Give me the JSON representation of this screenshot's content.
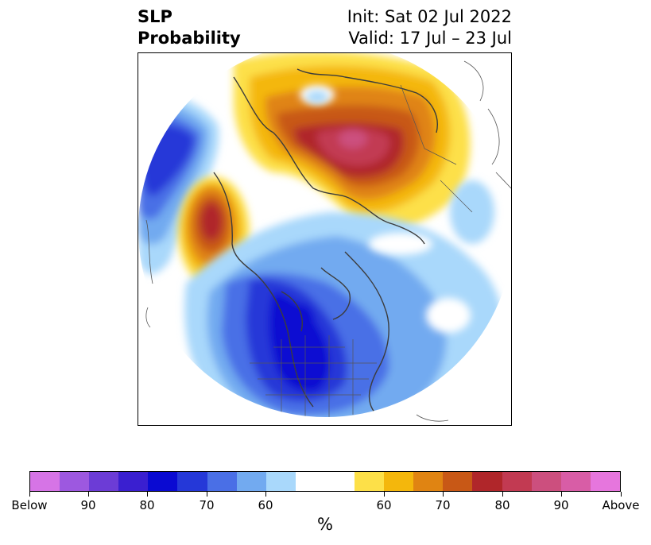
{
  "header": {
    "variable": "SLP",
    "product": "Probability",
    "init": "Init: Sat 02 Jul 2022",
    "valid": "Valid: 17 Jul – 23 Jul"
  },
  "colorbar": {
    "unit": "%",
    "tick_labels": [
      "Below",
      "90",
      "80",
      "70",
      "60",
      "60",
      "70",
      "80",
      "90",
      "Above"
    ],
    "colors": [
      "#d674e6",
      "#9d58e0",
      "#6c3cd6",
      "#3a1fd0",
      "#0a0ad2",
      "#2538d8",
      "#4a6fe6",
      "#72aaf0",
      "#a9d8fb",
      "#ffffff",
      "#ffffff",
      "#fde048",
      "#f4b70c",
      "#e08412",
      "#c85816",
      "#b0262a",
      "#c23a52",
      "#cc4f7e",
      "#d85da6",
      "#e676dd"
    ]
  },
  "map": {
    "projection": "north-polar-stereographic",
    "field": "Sea-level pressure tercile probability",
    "icon": "globe-icon"
  }
}
